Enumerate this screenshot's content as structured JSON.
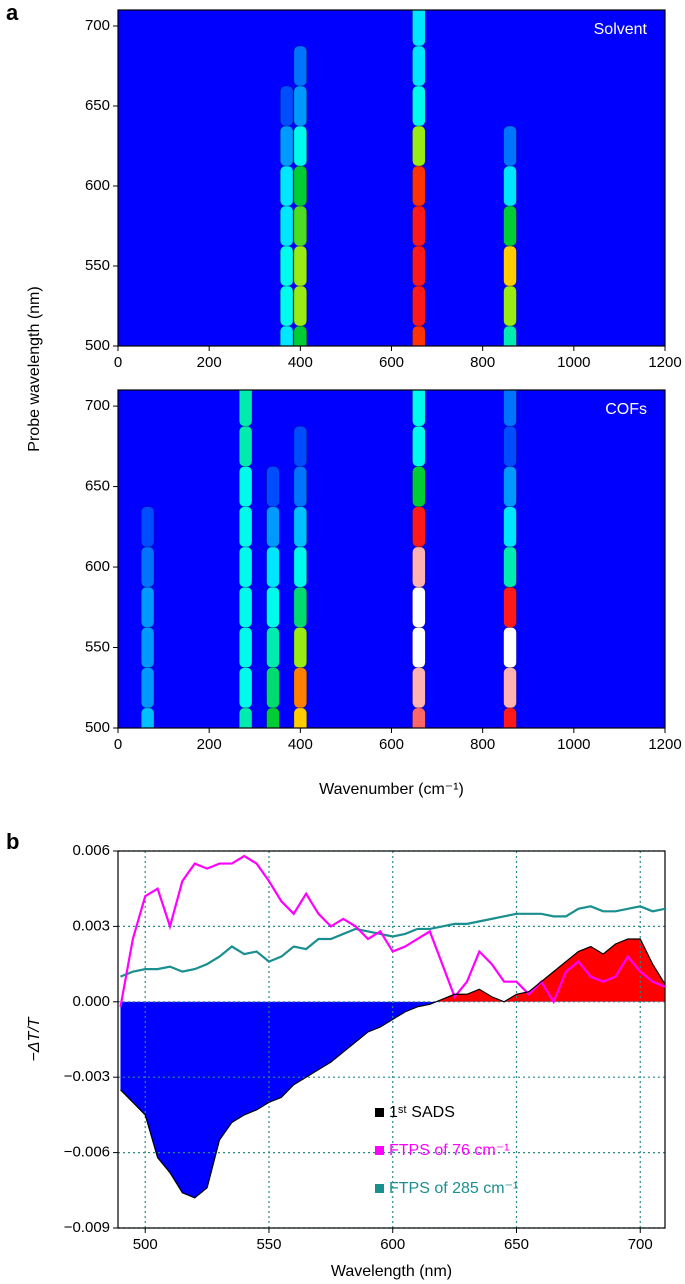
{
  "chart_data": [
    {
      "type": "heatmap",
      "panel_label": "a",
      "title": "Solvent",
      "ylabel": "Probe wavelength (nm)",
      "x": [
        370,
        400,
        660,
        860
      ],
      "y": [
        500,
        525,
        550,
        575,
        600,
        625,
        650,
        675,
        700
      ],
      "z": [
        [
          0.3,
          0.5,
          0.8,
          0.4
        ],
        [
          0.35,
          0.6,
          0.85,
          0.6
        ],
        [
          0.35,
          0.6,
          0.85,
          0.7
        ],
        [
          0.3,
          0.55,
          0.85,
          0.5
        ],
        [
          0.3,
          0.5,
          0.8,
          0.3
        ],
        [
          0.2,
          0.35,
          0.6,
          0.15
        ],
        [
          0.1,
          0.2,
          0.35,
          0
        ],
        [
          0,
          0.15,
          0.3,
          0
        ],
        [
          0,
          0,
          0.3,
          0
        ]
      ],
      "colorscale": [
        "#0000ff",
        "#0080ff",
        "#00ffff",
        "#00cc33",
        "#ffff00",
        "#ff0000",
        "#ffffff"
      ],
      "xlim": [
        0,
        1200
      ],
      "ylim": [
        500,
        710
      ],
      "xticks": [
        0,
        200,
        400,
        600,
        800,
        1000,
        1200
      ],
      "yticks": [
        500,
        550,
        600,
        650,
        700
      ]
    },
    {
      "type": "heatmap",
      "title": "COFs",
      "xlabel": "Wavenumber (cm⁻¹)",
      "x": [
        65,
        280,
        340,
        400,
        660,
        860
      ],
      "y": [
        500,
        525,
        550,
        575,
        600,
        625,
        650,
        675,
        700
      ],
      "z": [
        [
          0.25,
          0.4,
          0.5,
          0.7,
          0.9,
          0.85
        ],
        [
          0.2,
          0.35,
          0.45,
          0.75,
          0.95,
          0.95
        ],
        [
          0.2,
          0.35,
          0.4,
          0.6,
          1.0,
          1.0
        ],
        [
          0.2,
          0.35,
          0.35,
          0.45,
          1.0,
          0.85
        ],
        [
          0.15,
          0.35,
          0.3,
          0.35,
          0.95,
          0.4
        ],
        [
          0.1,
          0.35,
          0.2,
          0.25,
          0.85,
          0.3
        ],
        [
          0,
          0.35,
          0.1,
          0.15,
          0.5,
          0.2
        ],
        [
          0,
          0.4,
          0,
          0.1,
          0.35,
          0.1
        ],
        [
          0,
          0.4,
          0,
          0,
          0.35,
          0.15
        ]
      ],
      "colorscale": [
        "#0000ff",
        "#0080ff",
        "#00ffff",
        "#00cc33",
        "#ffff00",
        "#ff0000",
        "#ffffff"
      ],
      "xlim": [
        0,
        1200
      ],
      "ylim": [
        500,
        710
      ],
      "xticks": [
        0,
        200,
        400,
        600,
        800,
        1000,
        1200
      ],
      "yticks": [
        500,
        550,
        600,
        650,
        700
      ]
    },
    {
      "type": "line",
      "panel_label": "b",
      "xlabel": "Wavelength (nm)",
      "ylabel": "−ΔT/T",
      "x": [
        490,
        495,
        500,
        505,
        510,
        515,
        520,
        525,
        530,
        535,
        540,
        545,
        550,
        555,
        560,
        565,
        570,
        575,
        580,
        585,
        590,
        595,
        600,
        605,
        610,
        615,
        620,
        625,
        630,
        635,
        640,
        645,
        650,
        655,
        660,
        665,
        670,
        675,
        680,
        685,
        690,
        695,
        700,
        705,
        710
      ],
      "series": [
        {
          "name": "1ˢᵗ SADS",
          "color": "#000000",
          "fill_positive": "#ff0000",
          "fill_negative": "#0000ff",
          "values": [
            -0.0035,
            -0.004,
            -0.0045,
            -0.0062,
            -0.0068,
            -0.0076,
            -0.0078,
            -0.0074,
            -0.0055,
            -0.0048,
            -0.0045,
            -0.0043,
            -0.004,
            -0.0038,
            -0.0033,
            -0.003,
            -0.0027,
            -0.0024,
            -0.002,
            -0.0016,
            -0.0012,
            -0.001,
            -0.0007,
            -0.0004,
            -0.0002,
            -0.0001,
            0.0001,
            0.0003,
            0.0003,
            0.0005,
            0.0002,
            0,
            0.0003,
            0.0004,
            0.0008,
            0.0012,
            0.0016,
            0.002,
            0.0022,
            0.0019,
            0.0023,
            0.0025,
            0.0025,
            0.0015,
            0.0007
          ]
        },
        {
          "name": "FTPS of 76 cm⁻¹",
          "color": "#ff00ff",
          "values": [
            -0.0002,
            0.0025,
            0.0042,
            0.0045,
            0.003,
            0.0048,
            0.0055,
            0.0053,
            0.0055,
            0.0055,
            0.0058,
            0.0055,
            0.0048,
            0.004,
            0.0035,
            0.0043,
            0.0035,
            0.003,
            0.0033,
            0.003,
            0.0025,
            0.0028,
            0.002,
            0.0022,
            0.0025,
            0.0028,
            0.0015,
            0.0002,
            0.0008,
            0.002,
            0.0015,
            0.0008,
            0.0008,
            0.0003,
            0.0008,
            0,
            0.0012,
            0.0016,
            0.001,
            0.0008,
            0.001,
            0.0018,
            0.0012,
            0.0008,
            0.0006
          ]
        },
        {
          "name": "FTPS of 285 cm⁻¹",
          "color": "#1a8f8f",
          "values": [
            0.001,
            0.0012,
            0.0013,
            0.0013,
            0.0014,
            0.0012,
            0.0013,
            0.0015,
            0.0018,
            0.0022,
            0.0019,
            0.002,
            0.0016,
            0.0018,
            0.0022,
            0.0021,
            0.0025,
            0.0025,
            0.0027,
            0.0029,
            0.0028,
            0.0027,
            0.0026,
            0.0027,
            0.0029,
            0.0029,
            0.003,
            0.0031,
            0.0031,
            0.0032,
            0.0033,
            0.0034,
            0.0035,
            0.0035,
            0.0035,
            0.0034,
            0.0034,
            0.0037,
            0.0038,
            0.0036,
            0.0036,
            0.0037,
            0.0038,
            0.0036,
            0.0037
          ]
        }
      ],
      "xlim": [
        489,
        710
      ],
      "ylim": [
        -0.009,
        0.006
      ],
      "xticks": [
        500,
        550,
        600,
        650,
        700
      ],
      "yticks": [
        {
          "value": -0.009,
          "label": "−0.009"
        },
        {
          "value": -0.006,
          "label": "−0.006"
        },
        {
          "value": -0.003,
          "label": "−0.003"
        },
        {
          "value": 0,
          "label": "0.000"
        },
        0.003,
        0.006
      ],
      "grid": true,
      "grid_color": "#2a8a8a",
      "legend": "lower right"
    }
  ]
}
